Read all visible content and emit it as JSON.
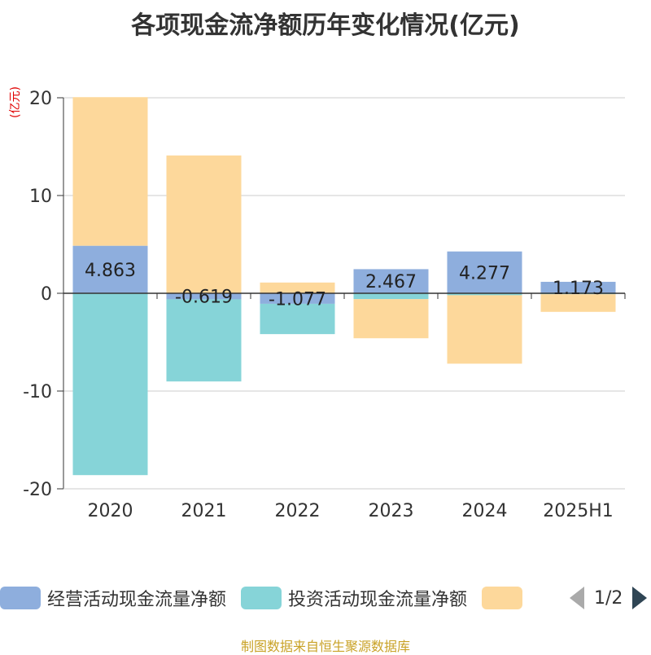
{
  "title": "各项现金流净额历年变化情况(亿元)",
  "unit_label": "(亿元)",
  "source": "制图数据来自恒生聚源数据库",
  "pager": {
    "text": "1/2"
  },
  "legend": [
    {
      "name": "经营活动现金流量净额",
      "color": "#8eaedd"
    },
    {
      "name": "投资活动现金流量净额",
      "color": "#86d4d8"
    },
    {
      "name": "",
      "color": "#fdd89b"
    }
  ],
  "chart_data": {
    "type": "bar",
    "stacked": true,
    "categories": [
      "2020",
      "2021",
      "2022",
      "2023",
      "2024",
      "2025H1"
    ],
    "ylim": [
      -20,
      20
    ],
    "yticks": [
      -20,
      -10,
      0,
      10,
      20
    ],
    "grid": true,
    "series": [
      {
        "name": "经营活动现金流量净额",
        "color": "#8eaedd",
        "values": [
          4.863,
          -0.619,
          -1.077,
          2.467,
          4.277,
          1.173
        ]
      },
      {
        "name": "投资活动现金流量净额",
        "color": "#86d4d8",
        "values": [
          -18.6,
          -8.4,
          -3.1,
          -0.6,
          -0.2,
          -0.1
        ]
      },
      {
        "name": "",
        "color": "#fdd89b",
        "values": [
          15.2,
          14.1,
          1.1,
          -4.0,
          -7.0,
          -1.8
        ]
      }
    ],
    "data_labels": [
      "4.863",
      "-0.619",
      "-1.077",
      "2.467",
      "4.277",
      "1.173"
    ]
  }
}
